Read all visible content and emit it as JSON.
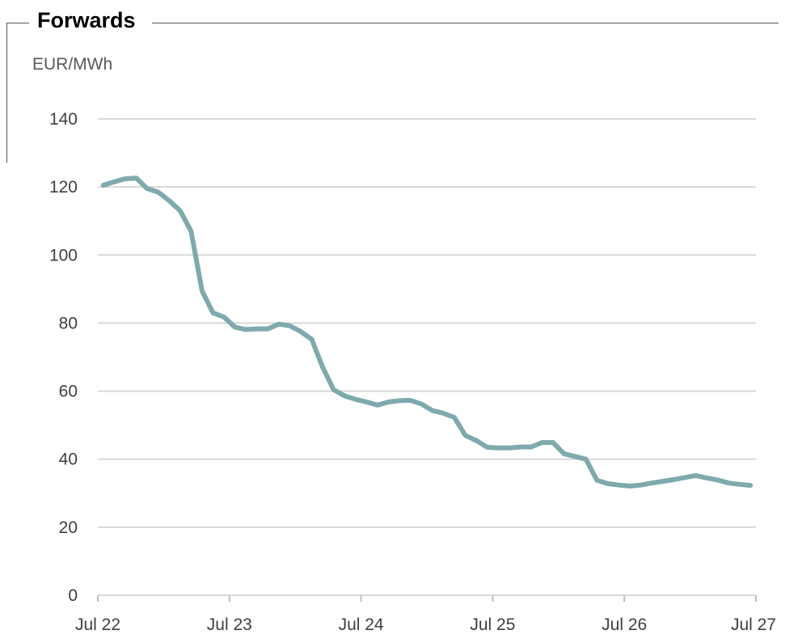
{
  "chart_data": {
    "type": "line",
    "title": "Forwards",
    "ylabel": "EUR/MWh",
    "xlabel": "",
    "ylim": [
      0,
      140
    ],
    "y_ticks": [
      0,
      20,
      40,
      60,
      80,
      100,
      120,
      140
    ],
    "x_ticks": [
      "Jul 22",
      "Jul 23",
      "Jul 24",
      "Jul 25",
      "Jul 26",
      "Jul 27"
    ],
    "xlim": [
      0,
      60
    ],
    "grid": true,
    "line_color": "#7eaaad",
    "series": [
      {
        "x": [
          0.5,
          1.5,
          2.5,
          3.5,
          4.5,
          5.5,
          6.5,
          7.5,
          8.5,
          9.5,
          10.5,
          11.5,
          12.5,
          13.5,
          14.5,
          15.5,
          16.5,
          17.5,
          18.5,
          19.5,
          20.5,
          21.5,
          22.5,
          23.5,
          24.5,
          25.5,
          26.5,
          27.5,
          28.5,
          29.5,
          30.5,
          31.5,
          32.5,
          33.5,
          34.5,
          35.5,
          36.5,
          37.5,
          38.5,
          39.5,
          40.5,
          41.5,
          42.5,
          43.5,
          44.5,
          45.5,
          46.5,
          47.5,
          48.5,
          49.5,
          50.5,
          51.5,
          52.5,
          53.5,
          54.5,
          55.5,
          56.5,
          57.5,
          58.5,
          59.5
        ],
        "values": [
          120.5,
          121.5,
          122.4,
          122.6,
          119.5,
          118.5,
          116,
          113,
          107,
          89.5,
          83,
          81.8,
          78.8,
          78.1,
          78.3,
          78.3,
          79.7,
          79.2,
          77.5,
          75.2,
          67,
          60.4,
          58.6,
          57.6,
          56.8,
          55.9,
          56.8,
          57.2,
          57.3,
          56.2,
          54.3,
          53.5,
          52.3,
          47,
          45.5,
          43.5,
          43.3,
          43.3,
          43.6,
          43.6,
          44.9,
          44.9,
          41.6,
          40.8,
          40,
          33.8,
          32.8,
          32.4,
          32.1,
          32.4,
          33,
          33.5,
          34,
          34.6,
          35.2,
          34.5,
          33.9,
          33,
          32.6,
          32.3
        ]
      }
    ]
  }
}
